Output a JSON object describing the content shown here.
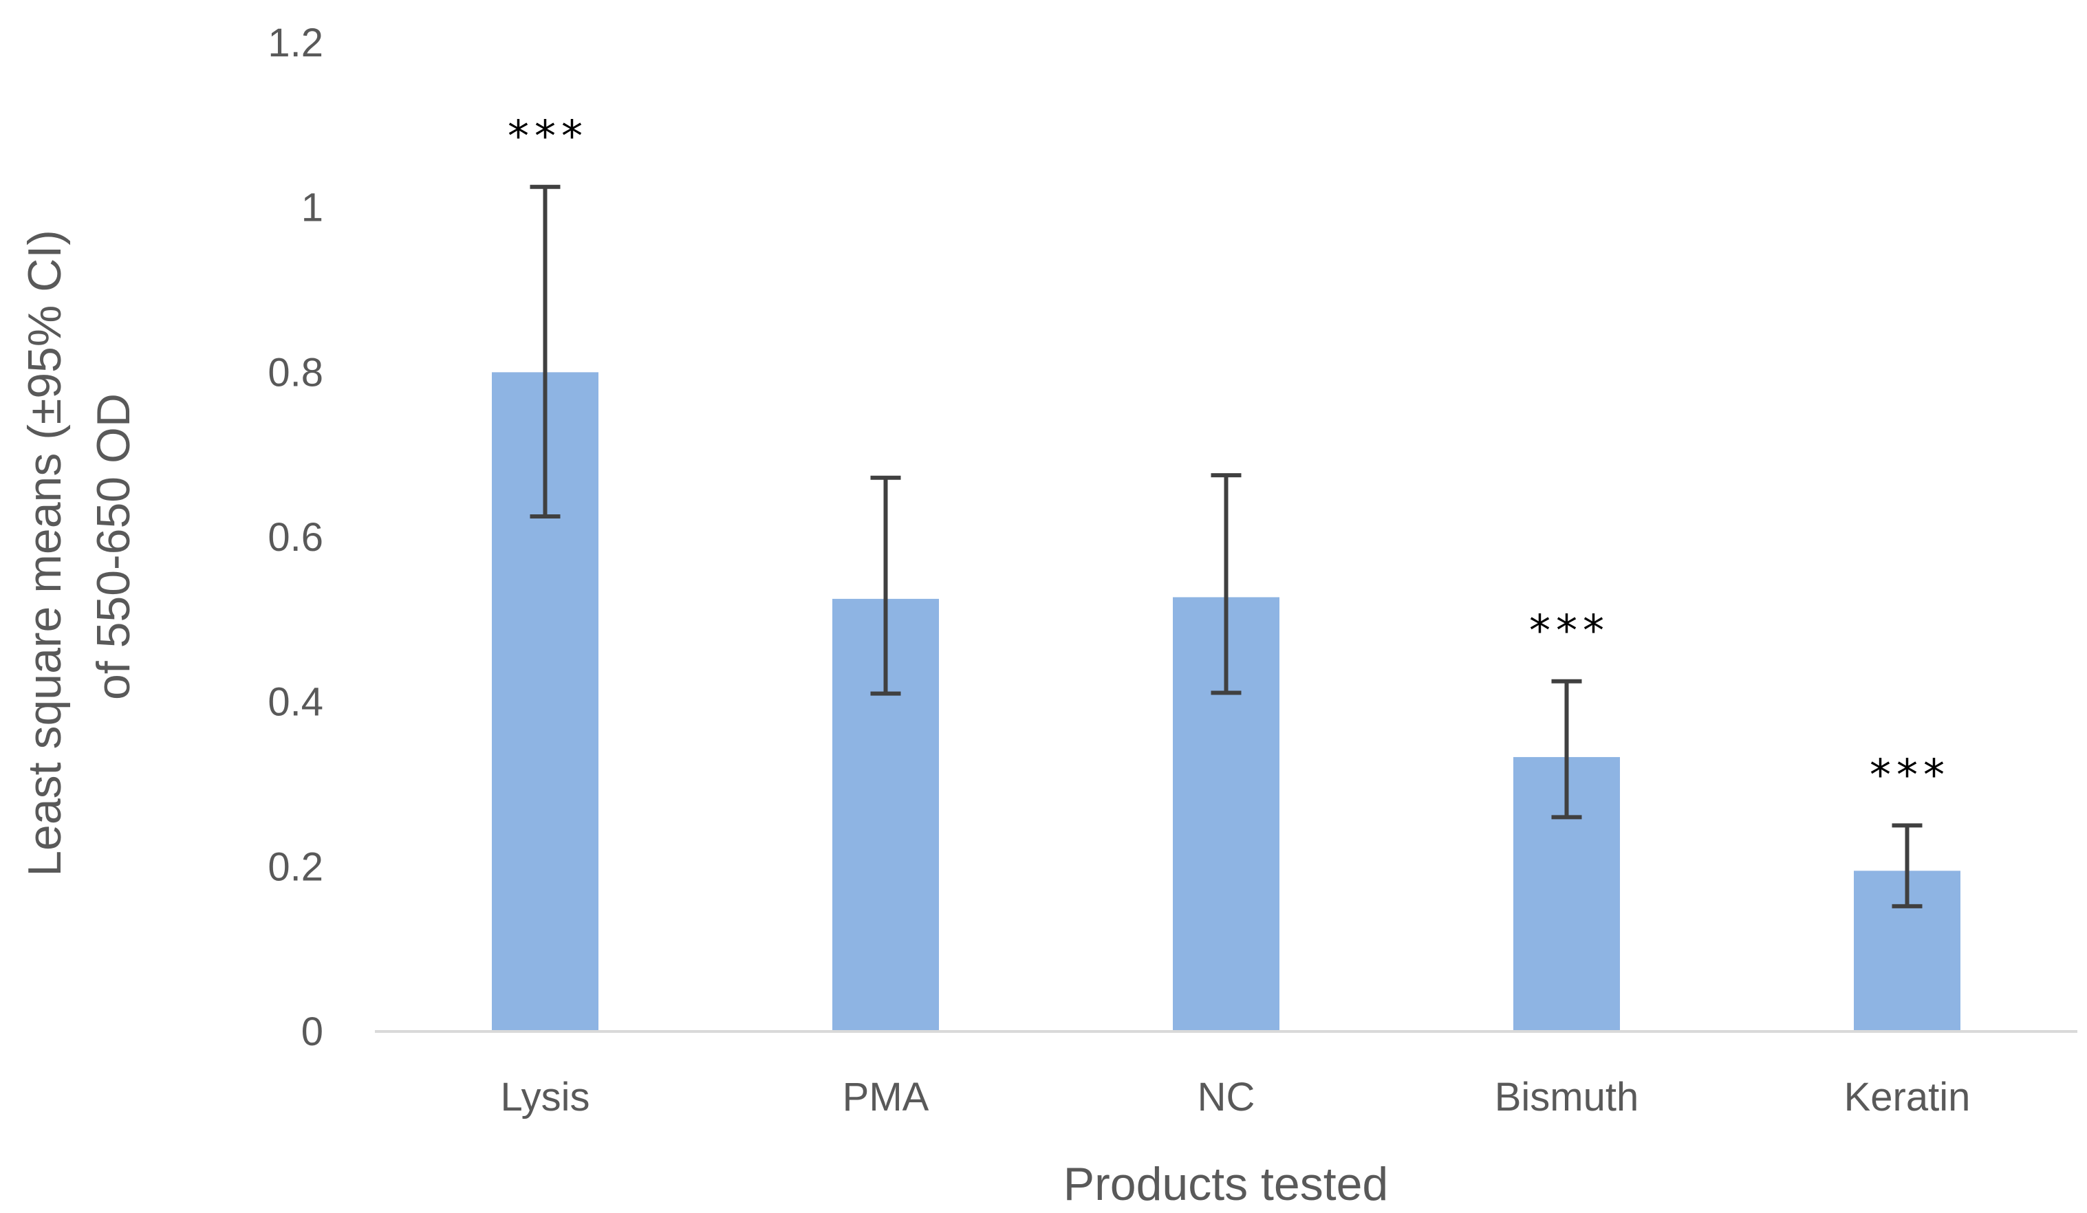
{
  "chart_data": {
    "type": "bar",
    "title": "",
    "xlabel": "Products tested",
    "ylabel_lines": [
      "Least square means (±95% CI)",
      "of 550-650 OD"
    ],
    "categories": [
      "Lysis",
      "PMA",
      "NC",
      "Bismuth",
      "Keratin"
    ],
    "values": [
      0.8,
      0.525,
      0.527,
      0.333,
      0.195
    ],
    "ci_lower": [
      0.625,
      0.41,
      0.411,
      0.26,
      0.152
    ],
    "ci_upper": [
      1.025,
      0.672,
      0.675,
      0.425,
      0.25
    ],
    "significance": [
      "***",
      "",
      "",
      "***",
      "***"
    ],
    "ylim": [
      0,
      1.2
    ],
    "yticks": [
      0,
      0.2,
      0.4,
      0.6,
      0.8,
      1,
      1.2
    ],
    "ytick_labels": [
      "0",
      "0.2",
      "0.4",
      "0.6",
      "0.8",
      "1",
      "1.2"
    ],
    "grid": false,
    "colors": {
      "bar": "#8EB4E3",
      "error_bar": "#404040",
      "axis_line": "#D9D9D9",
      "text": "#595959",
      "significance": "#000000"
    }
  }
}
